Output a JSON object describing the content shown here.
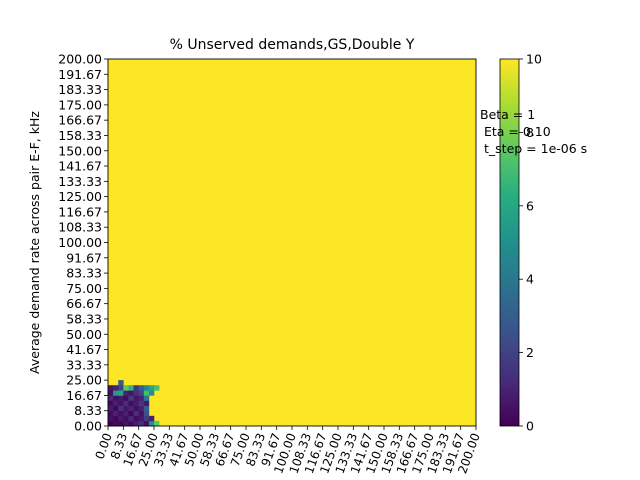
{
  "chart_data": {
    "type": "heatmap",
    "title": "% Unserved demands,GS,Double Y",
    "xlabel": "",
    "ylabel": "Average demand rate across pair E-F, kHz",
    "x_ticks": [
      "0.00",
      "8.33",
      "16.67",
      "25.00",
      "33.33",
      "41.67",
      "50.00",
      "58.33",
      "66.67",
      "75.00",
      "83.33",
      "91.67",
      "100.00",
      "108.33",
      "116.67",
      "125.00",
      "133.33",
      "141.67",
      "150.00",
      "158.33",
      "166.67",
      "175.00",
      "183.33",
      "191.67",
      "200.00"
    ],
    "y_ticks": [
      "0.00",
      "8.33",
      "16.67",
      "25.00",
      "33.33",
      "41.67",
      "50.00",
      "58.33",
      "66.67",
      "75.00",
      "83.33",
      "91.67",
      "100.00",
      "108.33",
      "116.67",
      "125.00",
      "133.33",
      "141.67",
      "150.00",
      "158.33",
      "166.67",
      "175.00",
      "183.33",
      "191.67",
      "200.00"
    ],
    "xlim": [
      0,
      200
    ],
    "ylim": [
      0,
      200
    ],
    "grid_cells": 72,
    "colorbar": {
      "min": 0,
      "max": 10,
      "ticks": [
        "0",
        "2",
        "4",
        "6",
        "8",
        "10"
      ],
      "colormap": "viridis"
    },
    "background_value": 10,
    "low_region_rows": [
      [
        0.0,
        0.3,
        0.2,
        0.6,
        0.3,
        0.9,
        1.5,
        0.4,
        5.0,
        7.5
      ],
      [
        0.5,
        0.2,
        0.8,
        0.4,
        1.2,
        0.3,
        0.7,
        1.8,
        1.0,
        10
      ],
      [
        0.3,
        1.0,
        0.4,
        0.9,
        0.2,
        1.4,
        0.5,
        2.5,
        10,
        10
      ],
      [
        0.8,
        0.2,
        1.5,
        0.6,
        1.1,
        0.4,
        0.9,
        3.0,
        10,
        10
      ],
      [
        0.2,
        0.9,
        0.5,
        1.3,
        0.3,
        0.8,
        1.6,
        0.7,
        10,
        10
      ],
      [
        1.2,
        0.4,
        0.7,
        0.3,
        1.8,
        0.6,
        1.0,
        4.0,
        10,
        10
      ],
      [
        0.4,
        5.5,
        6.0,
        1.0,
        0.5,
        1.4,
        2.2,
        7.0,
        5.0,
        10
      ],
      [
        0.6,
        1.0,
        2.0,
        7.5,
        6.5,
        1.5,
        3.0,
        4.5,
        6.0,
        7.0
      ],
      [
        10,
        10,
        3.0,
        10,
        10,
        10,
        10,
        10,
        10,
        10
      ],
      [
        10,
        10,
        10,
        10,
        10,
        10,
        10,
        10,
        10,
        10
      ]
    ],
    "annotation": [
      "Beta = 1",
      "Eta = 0.10",
      "t_step = 1e-06 s"
    ],
    "colors": {
      "max": "#fde725",
      "min": "#440154"
    }
  }
}
